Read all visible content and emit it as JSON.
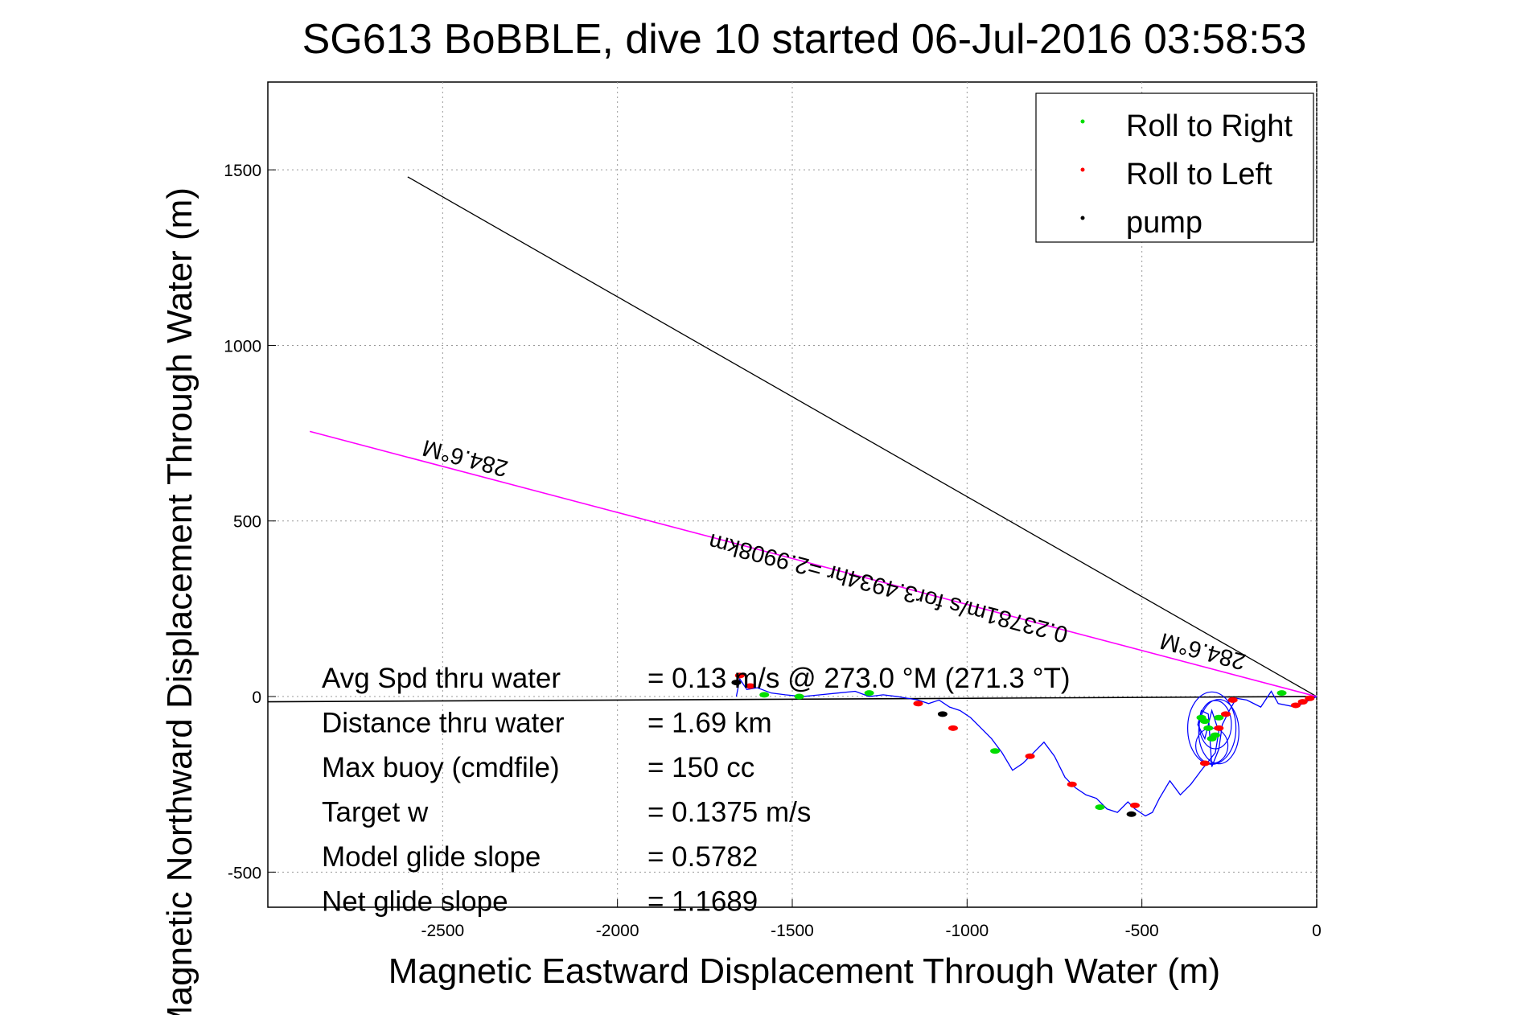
{
  "chart_data": {
    "type": "line",
    "title": "SG613 BoBBLE, dive 10 started 06-Jul-2016 03:58:53",
    "xlabel": "Magnetic Eastward Displacement Through Water (m)",
    "ylabel": "Magnetic Northward Displacement Through Water (m)",
    "xlim": [
      -3000,
      0
    ],
    "ylim": [
      -600,
      1750
    ],
    "xticks": [
      -2500,
      -2000,
      -1500,
      -1000,
      -500,
      0
    ],
    "yticks": [
      -500,
      0,
      500,
      1000,
      1500
    ],
    "grid": true,
    "legend_position": "top-right",
    "legend": [
      {
        "label": "Roll to Right",
        "color": "#00dd00"
      },
      {
        "label": "Roll to Left",
        "color": "#ff0000"
      },
      {
        "label": "pump",
        "color": "#000000"
      }
    ],
    "track": {
      "name": "",
      "color": "#0000ff",
      "x": [
        0,
        -20,
        -60,
        -110,
        -130,
        -160,
        -200,
        -230,
        -250,
        -260,
        -270,
        -280,
        -300,
        -310,
        -330,
        -340,
        -320,
        -300,
        -280,
        -290,
        -330,
        -360,
        -390,
        -420,
        -450,
        -470,
        -490,
        -520,
        -540,
        -570,
        -600,
        -630,
        -660,
        -690,
        -720,
        -750,
        -780,
        -810,
        -840,
        -870,
        -900,
        -930,
        -960,
        -990,
        -1020,
        -1050,
        -1080,
        -1110,
        -1140,
        -1170,
        -1200,
        -1240,
        -1280,
        -1320,
        -1370,
        -1420,
        -1470,
        -1520,
        -1560,
        -1600,
        -1630,
        -1650,
        -1660
      ],
      "y": [
        0,
        -10,
        -30,
        -20,
        15,
        -30,
        -10,
        -5,
        -40,
        -60,
        -80,
        -150,
        -200,
        -50,
        -40,
        -80,
        -120,
        -40,
        -100,
        -160,
        -210,
        -250,
        -280,
        -240,
        -290,
        -330,
        -340,
        -320,
        -300,
        -330,
        -320,
        -290,
        -280,
        -260,
        -230,
        -170,
        -130,
        -160,
        -190,
        -210,
        -160,
        -120,
        -90,
        -60,
        -40,
        -30,
        -10,
        -20,
        -10,
        -5,
        0,
        5,
        0,
        15,
        10,
        5,
        0,
        5,
        10,
        25,
        20,
        50,
        0
      ]
    },
    "heading_line": {
      "color": "#ff00ff",
      "x": [
        0,
        -2880
      ],
      "y": [
        0,
        755
      ]
    },
    "reference_line": {
      "color": "#000000",
      "x": [
        0,
        -2600
      ],
      "y": [
        0,
        1480
      ]
    },
    "current_line": {
      "color": "#000000",
      "x": [
        0,
        -3000
      ],
      "y": [
        0,
        -15
      ]
    },
    "roll_right_points": {
      "x": [
        -100,
        -330,
        -310,
        -290,
        -280,
        -300,
        -320,
        -620,
        -920,
        -1280,
        -1480,
        -1580
      ],
      "y": [
        10,
        -60,
        -90,
        -110,
        -60,
        -120,
        -70,
        -315,
        -155,
        10,
        0,
        5
      ]
    },
    "roll_left_points": {
      "x": [
        -20,
        -40,
        -60,
        -240,
        -260,
        -280,
        -320,
        -520,
        -700,
        -820,
        -1040,
        -1140,
        -1650,
        -1620
      ],
      "y": [
        -5,
        -15,
        -25,
        -10,
        -50,
        -90,
        -190,
        -310,
        -250,
        -170,
        -90,
        -20,
        60,
        30
      ]
    },
    "pump_points": {
      "x": [
        -530,
        -1070,
        -1660
      ],
      "y": [
        -335,
        -50,
        40
      ]
    },
    "annotations": [
      {
        "text": "284.6°M",
        "x": -2430,
        "y": 700
      },
      {
        "text": "0.23781m/s for3.4934hr =2.9908km",
        "x": -1220,
        "y": 330
      },
      {
        "text": "284.6°M",
        "x": -320,
        "y": 150
      }
    ],
    "stats": [
      {
        "label": "Avg Spd thru water",
        "value": "=  0.13 m/s @ 273.0 °M (271.3 °T)"
      },
      {
        "label": "Distance thru water",
        "value": "=  1.69 km"
      },
      {
        "label": "Max buoy (cmdfile)",
        "value": "= 150 cc"
      },
      {
        "label": "Target w",
        "value": "= 0.1375 m/s"
      },
      {
        "label": "Model glide slope",
        "value": "= 0.5782"
      },
      {
        "label": "Net glide slope",
        "value": "= 1.1689"
      }
    ]
  }
}
